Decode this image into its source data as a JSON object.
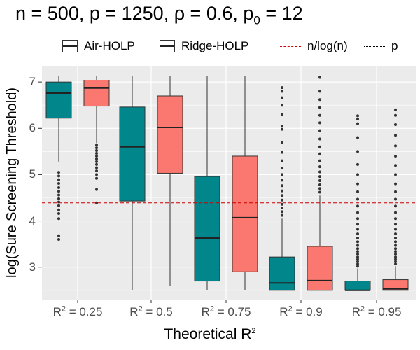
{
  "title": {
    "part1": "n = 500, p = 1250, ρ = 0.6, p",
    "sub": "0",
    "part2": " = 12"
  },
  "legend": {
    "air": "Air-HOLP",
    "ridge": "Ridge-HOLP",
    "nlog": "n/log(n)",
    "p": "p"
  },
  "colors": {
    "air": "#00868b",
    "ridge": "#fa7870",
    "panel": "#ebebeb",
    "grid": "#ffffff",
    "nlog_line": "#cc0000"
  },
  "chart_data": {
    "type": "boxplot",
    "title": "n = 500, p = 1250, ρ = 0.6, p0 = 12",
    "xlabel": {
      "text": "Theoretical R",
      "sup": "2"
    },
    "ylabel": "log(Sure Screening Threshold)",
    "ylim": [
      2.3,
      7.35
    ],
    "yticks": [
      3,
      4,
      5,
      6,
      7
    ],
    "categories": [
      {
        "pre": "R",
        "sup": "2",
        "post": " = 0.25"
      },
      {
        "pre": "R",
        "sup": "2",
        "post": " = 0.5"
      },
      {
        "pre": "R",
        "sup": "2",
        "post": " = 0.75"
      },
      {
        "pre": "R",
        "sup": "2",
        "post": " = 0.9"
      },
      {
        "pre": "R",
        "sup": "2",
        "post": " = 0.95"
      }
    ],
    "series": [
      {
        "name": "Air-HOLP",
        "boxes": [
          {
            "whislo": 5.28,
            "q1": 6.22,
            "med": 6.76,
            "q3": 7.0,
            "whishi": 7.13,
            "outliers": [
              5.05,
              4.97,
              4.89,
              4.81,
              4.72,
              4.64,
              4.56,
              4.48,
              4.41,
              4.33,
              4.24,
              4.16,
              4.05,
              3.68,
              3.6
            ]
          },
          {
            "whislo": 2.5,
            "q1": 4.43,
            "med": 5.6,
            "q3": 6.46,
            "whishi": 7.13,
            "outliers": []
          },
          {
            "whislo": 2.5,
            "q1": 2.7,
            "med": 3.63,
            "q3": 4.96,
            "whishi": 7.13,
            "outliers": []
          },
          {
            "whislo": 2.5,
            "q1": 2.5,
            "med": 2.66,
            "q3": 3.22,
            "whishi": 4.05,
            "outliers": [
              4.12,
              4.2,
              4.28,
              4.36,
              4.45,
              4.55,
              4.65,
              4.76,
              4.88,
              5.0,
              5.14,
              5.3,
              5.48,
              5.7,
              5.98,
              6.05,
              6.3,
              6.5,
              6.66,
              6.8,
              6.88
            ]
          },
          {
            "whislo": 2.5,
            "q1": 2.5,
            "med": 2.5,
            "q3": 2.7,
            "whishi": 2.97,
            "outliers": [
              3.02,
              3.07,
              3.12,
              3.17,
              3.22,
              3.28,
              3.34,
              3.4,
              3.47,
              3.55,
              3.63,
              3.72,
              3.82,
              3.93,
              4.05,
              4.18,
              4.32,
              4.47,
              4.63,
              4.8,
              5.0,
              5.22,
              5.5,
              5.8,
              6.1,
              6.2,
              6.27
            ]
          }
        ]
      },
      {
        "name": "Ridge-HOLP",
        "boxes": [
          {
            "whislo": 5.68,
            "q1": 6.48,
            "med": 6.87,
            "q3": 7.04,
            "whishi": 7.13,
            "outliers": [
              5.64,
              5.58,
              5.52,
              5.46,
              5.4,
              5.34,
              5.28,
              5.22,
              5.15,
              5.08,
              5.0,
              4.92,
              4.68,
              4.39
            ]
          },
          {
            "whislo": 2.6,
            "q1": 5.03,
            "med": 6.02,
            "q3": 6.7,
            "whishi": 7.13,
            "outliers": []
          },
          {
            "whislo": 2.5,
            "q1": 2.9,
            "med": 4.07,
            "q3": 5.4,
            "whishi": 7.13,
            "outliers": []
          },
          {
            "whislo": 2.5,
            "q1": 2.5,
            "med": 2.71,
            "q3": 3.45,
            "whishi": 4.55,
            "outliers": [
              4.62,
              4.7,
              4.78,
              4.87,
              4.96,
              5.06,
              5.17,
              5.3,
              5.45,
              5.6,
              5.77,
              5.95,
              6.12,
              6.28,
              6.45,
              6.62,
              6.8,
              7.1
            ]
          },
          {
            "whislo": 2.5,
            "q1": 2.5,
            "med": 2.53,
            "q3": 2.73,
            "whishi": 3.02,
            "outliers": [
              3.07,
              3.12,
              3.17,
              3.22,
              3.28,
              3.34,
              3.4,
              3.47,
              3.55,
              3.63,
              3.72,
              3.82,
              3.93,
              4.05,
              4.18,
              4.32,
              4.47,
              4.63,
              4.8,
              5.0,
              5.2,
              5.4,
              5.62,
              5.85,
              6.08,
              6.28,
              6.4
            ]
          }
        ]
      }
    ],
    "reference_lines": [
      {
        "name": "n/log(n)",
        "y": 4.39,
        "style": "dashed"
      },
      {
        "name": "p",
        "y": 7.13,
        "style": "dotted"
      }
    ]
  }
}
